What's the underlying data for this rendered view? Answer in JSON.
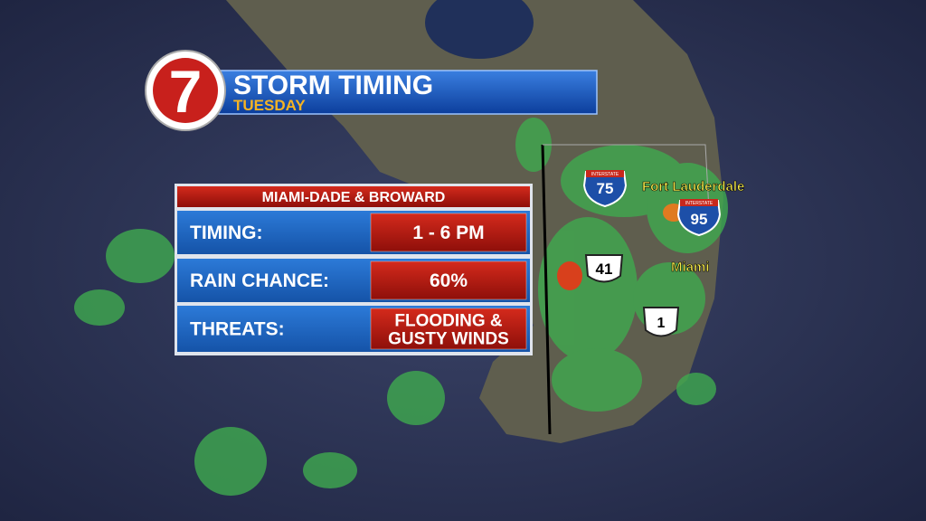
{
  "logo": {
    "number": "7"
  },
  "header": {
    "title": "STORM TIMING",
    "subtitle": "TUESDAY"
  },
  "panel": {
    "title": "MIAMI-DADE & BROWARD",
    "rows": [
      {
        "label": "TIMING:",
        "value": [
          "1 - 6 PM"
        ]
      },
      {
        "label": "RAIN CHANCE:",
        "value": [
          "60%"
        ]
      },
      {
        "label": "THREATS:",
        "value": [
          "FLOODING &",
          "GUSTY WINDS"
        ]
      }
    ]
  },
  "map": {
    "cities": [
      "Fort Lauderdale",
      "Miami"
    ],
    "shields": [
      {
        "kind": "INTERSTATE",
        "number": "75"
      },
      {
        "kind": "INTERSTATE",
        "number": "95"
      },
      {
        "number": "41"
      },
      {
        "number": "1"
      }
    ]
  }
}
